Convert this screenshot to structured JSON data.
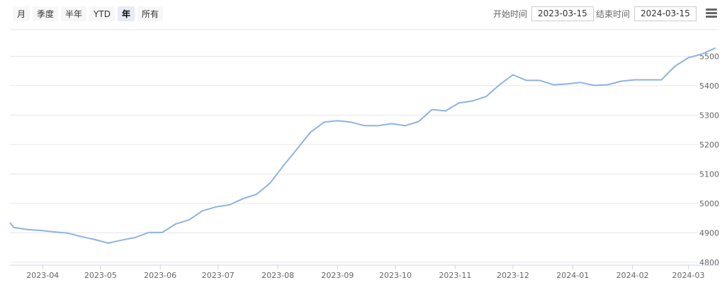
{
  "range_selector": {
    "buttons": [
      "月",
      "季度",
      "半年",
      "YTD",
      "年",
      "所有"
    ],
    "active": "年"
  },
  "inputs": {
    "start_label": "开始时间",
    "start_value": "2023-03-15",
    "end_label": "结束时间",
    "end_value": "2024-03-15"
  },
  "menu_icon": "hamburger-menu-icon",
  "chart_data": {
    "type": "line",
    "title": "",
    "xlabel": "",
    "ylabel": "",
    "ylim": [
      4790,
      5590
    ],
    "xlim": [
      "2023-03-15",
      "2024-03-17"
    ],
    "grid": true,
    "line_color": "#8fb3e0",
    "x_ticks": [
      "2023-04",
      "2023-05",
      "2023-06",
      "2023-07",
      "2023-08",
      "2023-09",
      "2023-10",
      "2023-11",
      "2023-12",
      "2024-01",
      "2024-02",
      "2024-03"
    ],
    "y_ticks": [
      4800,
      4900,
      5000,
      5100,
      5200,
      5300,
      5400,
      5500
    ],
    "series": [
      {
        "x": [
          "2023-03-15",
          "2023-03-17",
          "2023-03-24",
          "2023-03-31",
          "2023-04-07",
          "2023-04-14",
          "2023-04-21",
          "2023-04-28",
          "2023-05-05",
          "2023-05-12",
          "2023-05-19",
          "2023-05-26",
          "2023-06-02",
          "2023-06-09",
          "2023-06-16",
          "2023-06-23",
          "2023-06-30",
          "2023-07-07",
          "2023-07-14",
          "2023-07-21",
          "2023-07-28",
          "2023-08-04",
          "2023-08-11",
          "2023-08-18",
          "2023-08-25",
          "2023-09-01",
          "2023-09-08",
          "2023-09-15",
          "2023-09-22",
          "2023-09-29",
          "2023-10-06",
          "2023-10-13",
          "2023-10-20",
          "2023-10-27",
          "2023-11-03",
          "2023-11-10",
          "2023-11-17",
          "2023-11-24",
          "2023-12-01",
          "2023-12-08",
          "2023-12-15",
          "2023-12-22",
          "2023-12-29",
          "2024-01-05",
          "2024-01-12",
          "2024-01-19",
          "2024-01-26",
          "2024-02-02",
          "2024-02-09",
          "2024-02-16",
          "2024-02-23",
          "2024-03-01",
          "2024-03-08",
          "2024-03-15"
        ],
        "values": [
          4935,
          4918,
          4911,
          4908,
          4903,
          4899,
          4887,
          4877,
          4865,
          4875,
          4884,
          4901,
          4901,
          4930,
          4944,
          4975,
          4988,
          4995,
          5016,
          5031,
          5069,
          5129,
          5185,
          5242,
          5276,
          5281,
          5276,
          5264,
          5264,
          5271,
          5264,
          5278,
          5319,
          5314,
          5341,
          5348,
          5363,
          5403,
          5437,
          5418,
          5418,
          5403,
          5406,
          5411,
          5401,
          5403,
          5415,
          5420,
          5420,
          5420,
          5466,
          5495,
          5507,
          5528
        ]
      }
    ]
  }
}
